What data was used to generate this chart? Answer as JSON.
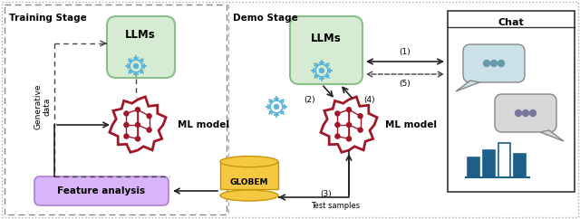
{
  "fig_width": 6.4,
  "fig_height": 2.42,
  "dpi": 100,
  "bg_color": "#ffffff",
  "training_label": "Training Stage",
  "demo_label": "Demo Stage",
  "chat_label": "Chat",
  "llm_label": "LLMs",
  "feature_label": "Feature analysis",
  "globem_label": "GLOBEM",
  "test_samples_label": "Test samples",
  "ml_model_label": "ML model",
  "gen_data_label": "Generative\ndata",
  "label_1": "(1)",
  "label_2": "(2)",
  "label_3": "(3)",
  "label_4": "(4)",
  "label_5": "(5)",
  "green_fill": "#d6ecd2",
  "green_edge": "#8bbf8a",
  "purple_fill": "#d8b4f8",
  "purple_edge": "#b080d0",
  "orange_fill": "#f5c842",
  "orange_edge": "#c8960a",
  "brain_color": "#a01828",
  "gear_color": "#5ab4d6",
  "arrow_solid": "#222222",
  "arrow_dashed": "#444444",
  "chat_edge": "#333333",
  "bubble1_fill": "#cce0e8",
  "bubble2_fill": "#d8d8d8",
  "bubble_edge": "#888888",
  "bar_color": "#1e5f8a",
  "bar_outline": "#1e5f8a"
}
